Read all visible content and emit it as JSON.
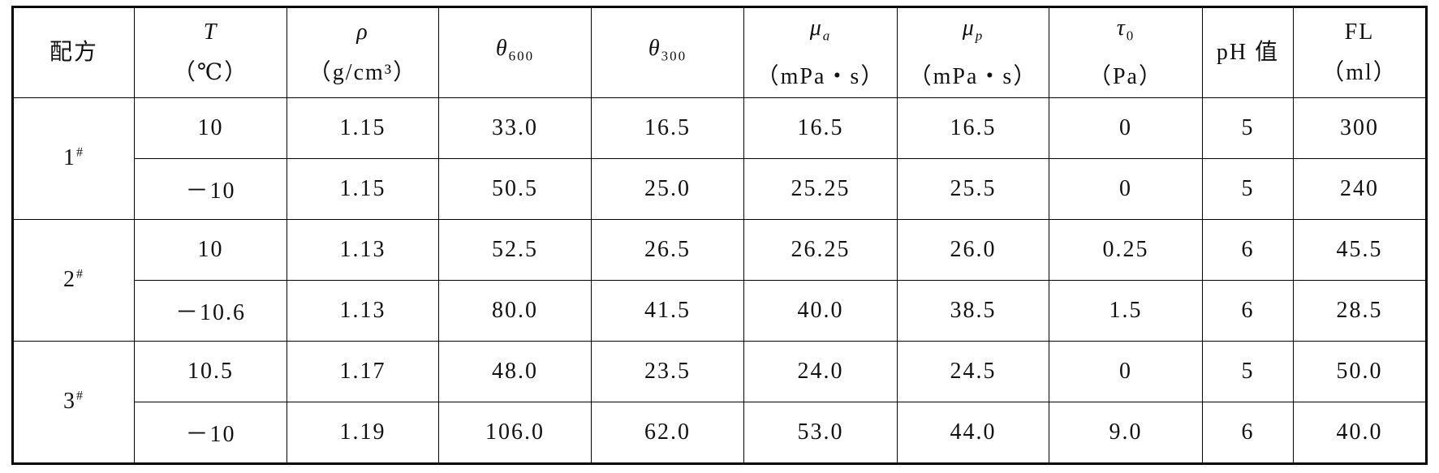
{
  "table": {
    "header": [
      {
        "text": "配方"
      },
      {
        "symbol": "T",
        "unit": "（℃）"
      },
      {
        "symbol": "ρ",
        "unit": "（g/cm³）"
      },
      {
        "symbol": "θ",
        "sub": "600"
      },
      {
        "symbol": "θ",
        "sub": "300"
      },
      {
        "symbol": "μ",
        "sub": "a",
        "unit": "（mPa・s）"
      },
      {
        "symbol": "μ",
        "sub": "p",
        "unit": "（mPa・s）"
      },
      {
        "symbol": "τ",
        "sub": "0",
        "unit": "（Pa）"
      },
      {
        "text": "pH 值"
      },
      {
        "symbol": "FL",
        "unit": "（ml）"
      }
    ],
    "groups": [
      {
        "label": "1",
        "mark": "#",
        "rows": [
          [
            "10",
            "1.15",
            "33.0",
            "16.5",
            "16.5",
            "16.5",
            "0",
            "5",
            "300"
          ],
          [
            "－10",
            "1.15",
            "50.5",
            "25.0",
            "25.25",
            "25.5",
            "0",
            "5",
            "240"
          ]
        ]
      },
      {
        "label": "2",
        "mark": "#",
        "rows": [
          [
            "10",
            "1.13",
            "52.5",
            "26.5",
            "26.25",
            "26.0",
            "0.25",
            "6",
            "45.5"
          ],
          [
            "－10.6",
            "1.13",
            "80.0",
            "41.5",
            "40.0",
            "38.5",
            "1.5",
            "6",
            "28.5"
          ]
        ]
      },
      {
        "label": "3",
        "mark": "#",
        "rows": [
          [
            "10.5",
            "1.17",
            "48.0",
            "23.5",
            "24.0",
            "24.5",
            "0",
            "5",
            "50.0"
          ],
          [
            "－10",
            "1.19",
            "106.0",
            "62.0",
            "53.0",
            "44.0",
            "9.0",
            "6",
            "40.0"
          ]
        ]
      }
    ]
  }
}
